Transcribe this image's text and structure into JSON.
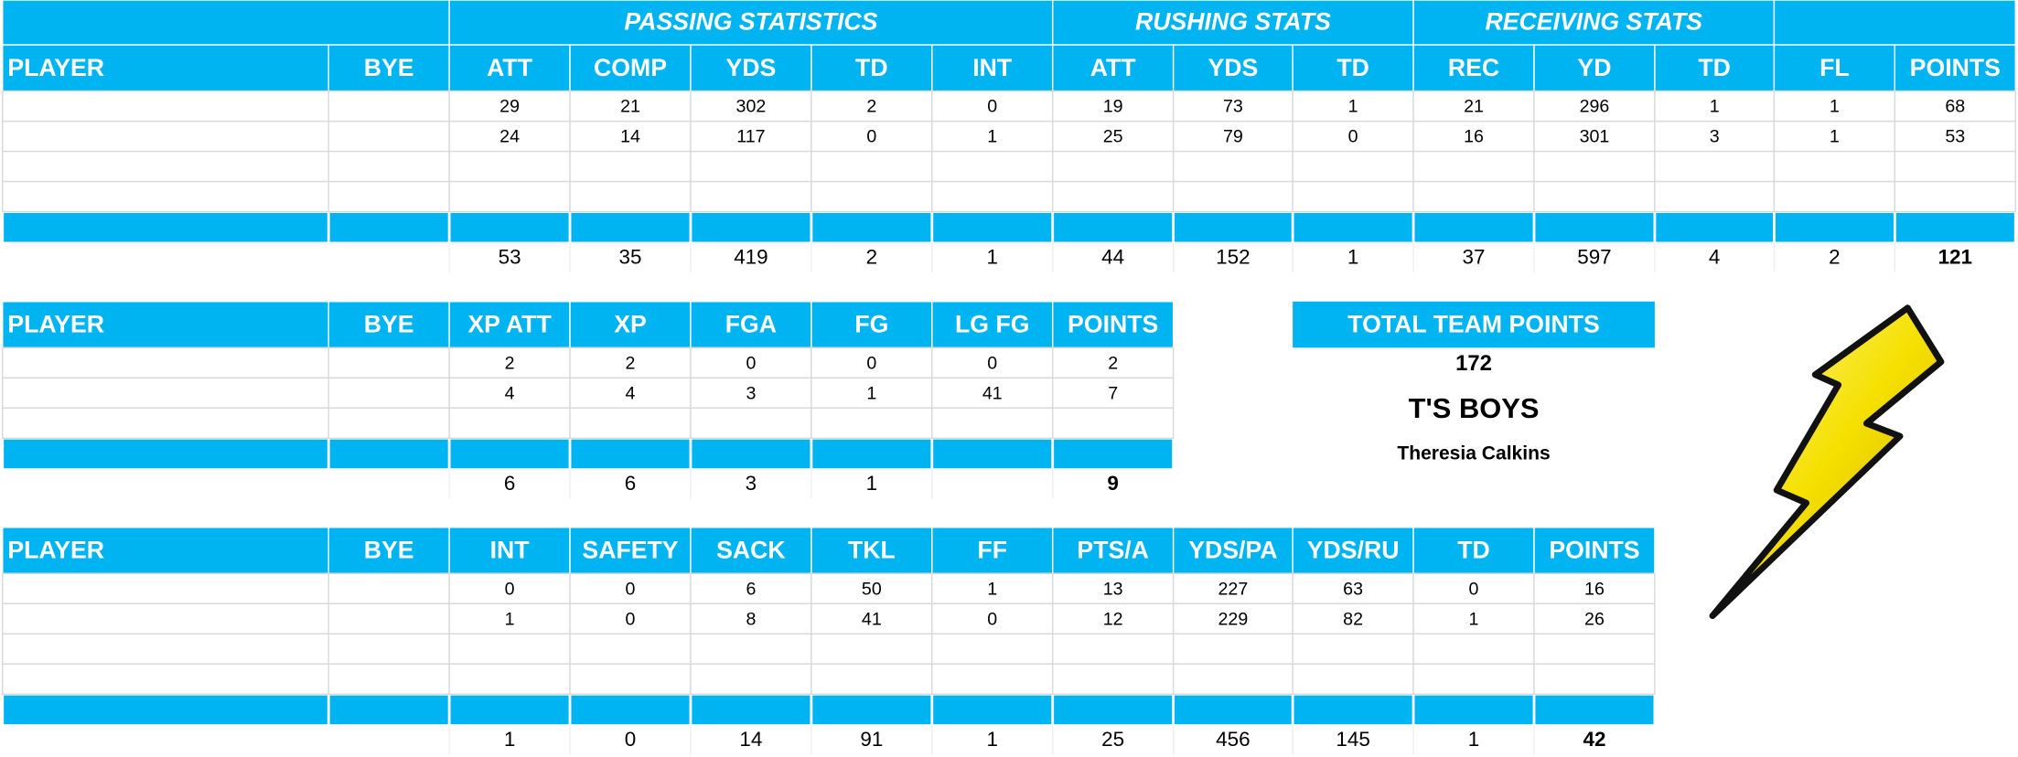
{
  "passing": {
    "groups": [
      "PASSING STATISTICS",
      "RUSHING STATS",
      "RECEIVING STATS"
    ],
    "columns": [
      "PLAYER",
      "BYE",
      "ATT",
      "COMP",
      "YDS",
      "TD",
      "INT",
      "ATT",
      "YDS",
      "TD",
      "REC",
      "YD",
      "TD",
      "FL",
      "POINTS"
    ],
    "rows": [
      [
        29,
        21,
        302,
        2,
        0,
        19,
        73,
        1,
        21,
        296,
        1,
        1,
        68
      ],
      [
        24,
        14,
        117,
        0,
        1,
        25,
        79,
        0,
        16,
        301,
        3,
        1,
        53
      ]
    ],
    "totals": [
      53,
      35,
      419,
      2,
      1,
      44,
      152,
      1,
      37,
      597,
      4,
      2,
      121
    ]
  },
  "kicking": {
    "columns": [
      "PLAYER",
      "BYE",
      "XP ATT",
      "XP",
      "FGA",
      "FG",
      "LG FG",
      "POINTS"
    ],
    "rows": [
      [
        2,
        2,
        0,
        0,
        0,
        2
      ],
      [
        4,
        4,
        3,
        1,
        41,
        7
      ]
    ],
    "totals": [
      6,
      6,
      3,
      1,
      null,
      9
    ]
  },
  "defense": {
    "columns": [
      "PLAYER",
      "BYE",
      "INT",
      "SAFETY",
      "SACK",
      "TKL",
      "FF",
      "PTS/A",
      "YDS/PA",
      "YDS/RU",
      "TD",
      "POINTS"
    ],
    "rows": [
      [
        0,
        0,
        6,
        50,
        1,
        13,
        227,
        63,
        0,
        16
      ],
      [
        1,
        0,
        8,
        41,
        0,
        12,
        229,
        82,
        1,
        26
      ]
    ],
    "totals": [
      1,
      0,
      14,
      91,
      1,
      25,
      456,
      145,
      1,
      42
    ]
  },
  "team": {
    "label": "TOTAL TEAM POINTS",
    "points": 172,
    "name": "T'S BOYS",
    "owner": "Theresia Calkins"
  }
}
